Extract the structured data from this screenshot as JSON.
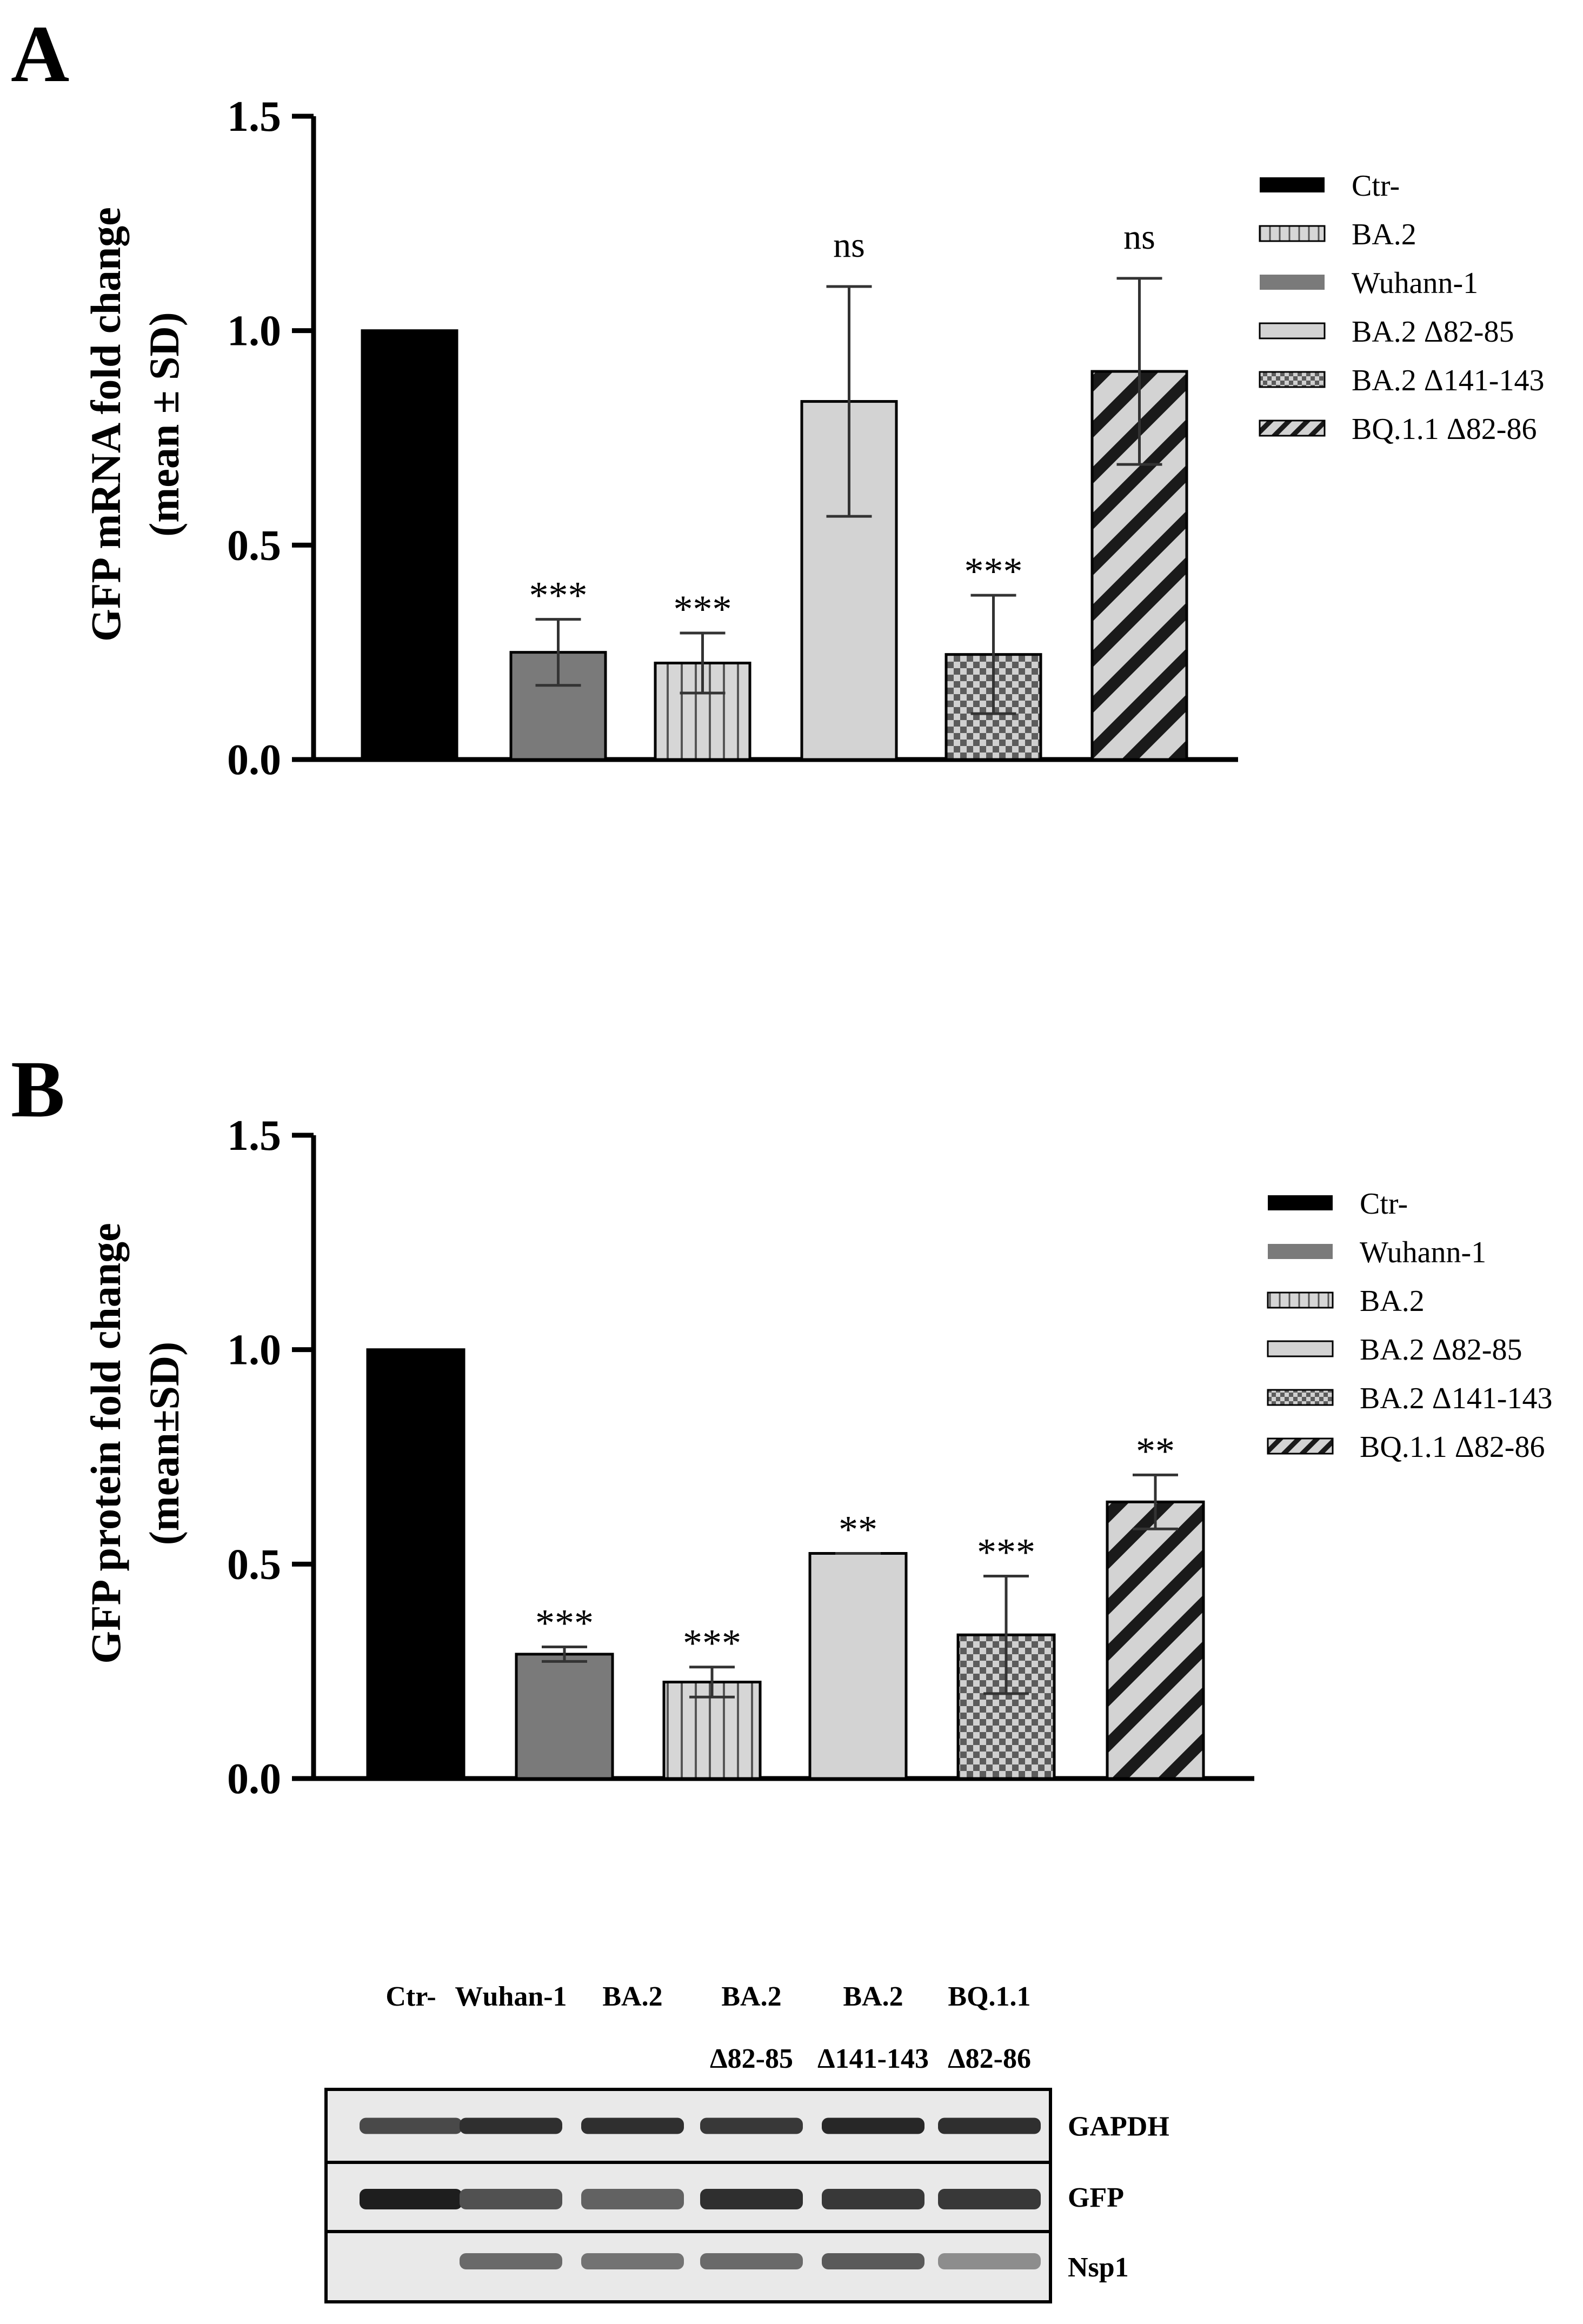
{
  "panels": [
    {
      "id": "A",
      "label": "A",
      "legend": [
        {
          "name": "Ctr-",
          "pattern": "solid-black"
        },
        {
          "name": "BA.2",
          "pattern": "vlines"
        },
        {
          "name": "Wuhann-1",
          "pattern": "solid-gray"
        },
        {
          "name": "BA.2 Δ82-85",
          "pattern": "light"
        },
        {
          "name": "BA.2 Δ141-143",
          "pattern": "checker"
        },
        {
          "name": "BQ.1.1 Δ82-86",
          "pattern": "diag"
        }
      ]
    },
    {
      "id": "B",
      "label": "B",
      "legend": [
        {
          "name": "Ctr-",
          "pattern": "solid-black"
        },
        {
          "name": "Wuhann-1",
          "pattern": "solid-gray"
        },
        {
          "name": "BA.2",
          "pattern": "vlines"
        },
        {
          "name": "BA.2 Δ82-85",
          "pattern": "light"
        },
        {
          "name": "BA.2 Δ141-143",
          "pattern": "checker"
        },
        {
          "name": "BQ.1.1 Δ82-86",
          "pattern": "diag"
        }
      ]
    }
  ],
  "chart_data": [
    {
      "type": "bar",
      "panel": "A",
      "ylabel_line1": "GFP mRNA fold change",
      "ylabel_line2": "(mean ± SD)",
      "xlabel": "",
      "ylim": [
        0,
        1.5
      ],
      "yticks": [
        "0.0",
        "0.5",
        "1.0",
        "1.5"
      ],
      "ytick_values": [
        0,
        0.5,
        1.0,
        1.5
      ],
      "categories": [
        "Ctr-",
        "Wuhann-1",
        "BA.2",
        "BA.2 Δ82-85",
        "BA.2 Δ141-143",
        "BQ.1.1 Δ82-86"
      ],
      "patterns": [
        "solid-black",
        "solid-gray",
        "vlines",
        "light",
        "checker",
        "diag"
      ],
      "values": [
        1.0,
        0.25,
        0.225,
        0.835,
        0.245,
        0.905
      ],
      "errors": [
        0,
        0.077,
        0.07,
        0.268,
        0.138,
        0.217
      ],
      "significance": [
        "",
        "***",
        "***",
        "ns",
        "***",
        "ns"
      ]
    },
    {
      "type": "bar",
      "panel": "B",
      "ylabel_line1": "GFP protein fold change",
      "ylabel_line2": "(mean±SD)",
      "xlabel": "",
      "ylim": [
        0,
        1.5
      ],
      "yticks": [
        "0.0",
        "0.5",
        "1.0",
        "1.5"
      ],
      "ytick_values": [
        0,
        0.5,
        1.0,
        1.5
      ],
      "categories": [
        "Ctr-",
        "Wuhann-1",
        "BA.2",
        "BA.2 Δ82-85",
        "BA.2 Δ141-143",
        "BQ.1.1 Δ82-86"
      ],
      "patterns": [
        "solid-black",
        "solid-gray",
        "vlines",
        "light",
        "checker",
        "diag"
      ],
      "values": [
        1.0,
        0.29,
        0.225,
        0.525,
        0.335,
        0.645
      ],
      "errors": [
        0,
        0.017,
        0.035,
        0,
        0.137,
        0.063
      ],
      "significance": [
        "",
        "***",
        "***",
        "**",
        "***",
        "**"
      ]
    }
  ],
  "western_blot": {
    "lanes": [
      {
        "line1": "Ctr-",
        "line2": ""
      },
      {
        "line1": "Wuhan-1",
        "line2": ""
      },
      {
        "line1": "BA.2",
        "line2": ""
      },
      {
        "line1": "BA.2",
        "line2": "Δ82-85"
      },
      {
        "line1": "BA.2",
        "line2": "Δ141-143"
      },
      {
        "line1": "BQ.1.1",
        "line2": "Δ82-86"
      }
    ],
    "rows": [
      "GAPDH",
      "GFP",
      "Nsp1"
    ],
    "bands": {
      "GAPDH": [
        0.75,
        0.9,
        0.9,
        0.85,
        0.95,
        0.9
      ],
      "GFP": [
        1.0,
        0.7,
        0.6,
        0.9,
        0.85,
        0.85
      ],
      "Nsp1": [
        0,
        0.55,
        0.5,
        0.55,
        0.65,
        0.35
      ]
    }
  },
  "colors": {
    "black": "#000000",
    "dark_gray": "#7a7a7a",
    "light_gray": "#d3d3d3",
    "blot_bg": "#e9e9e9",
    "band": "#2a2a2a"
  }
}
